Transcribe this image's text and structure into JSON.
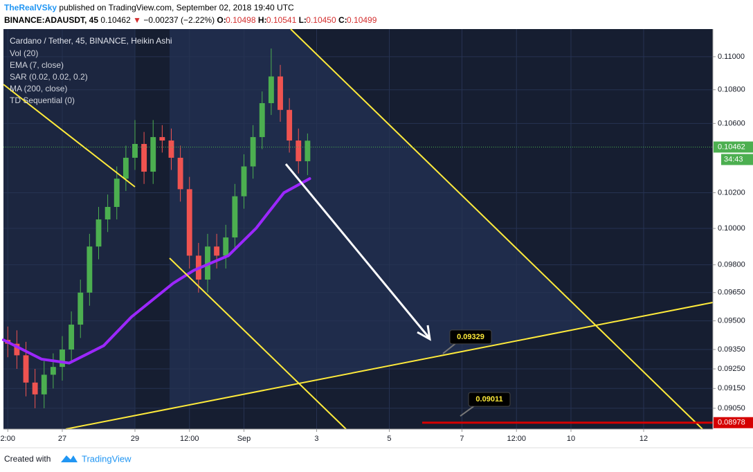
{
  "header": {
    "author": "TheRealVSky",
    "published": "published on TradingView.com, September 02, 2018 19:40 UTC",
    "symbol": "BINANCE:ADAUSDT, 45",
    "last": "0.10462",
    "arrow": "▼",
    "change": "−0.00237 (−2.22%)",
    "ohlc": [
      {
        "key": "O:",
        "value": "0.10498"
      },
      {
        "key": "H:",
        "value": "0.10541"
      },
      {
        "key": "L:",
        "value": "0.10450"
      },
      {
        "key": "C:",
        "value": "0.10499"
      }
    ]
  },
  "chart_data": {
    "type": "candlestick",
    "title": "Cardano / Tether, 45, BINANCE, Heikin Ashi",
    "indicators": [
      "Vol (20)",
      "EMA (7, close)",
      "SAR (0.02, 0.02, 0.2)",
      "MA (200, close)",
      "TD Sequential (0)"
    ],
    "x": [
      25.5,
      25.75,
      26,
      26.25,
      26.5,
      26.75,
      27,
      27.25,
      27.5,
      27.75,
      28,
      28.25,
      28.5,
      28.75,
      29,
      29.25,
      29.5,
      29.75,
      30,
      30.25,
      30.5,
      30.75,
      31,
      31.25,
      31.5,
      31.75,
      32,
      32.25,
      32.5,
      32.75,
      33,
      33.25,
      33.5,
      33.75
    ],
    "open": [
      0.094,
      0.0938,
      0.0932,
      0.0918,
      0.0912,
      0.0922,
      0.0926,
      0.0935,
      0.0948,
      0.0965,
      0.099,
      0.1005,
      0.1012,
      0.1028,
      0.104,
      0.1048,
      0.1032,
      0.1052,
      0.105,
      0.104,
      0.1022,
      0.0985,
      0.0972,
      0.099,
      0.0985,
      0.0995,
      0.1018,
      0.1035,
      0.1052,
      0.1072,
      0.1088,
      0.1068,
      0.105,
      0.1038
    ],
    "high": [
      0.0947,
      0.0945,
      0.0939,
      0.0925,
      0.0929,
      0.0933,
      0.0942,
      0.0955,
      0.0972,
      0.0997,
      0.1012,
      0.1019,
      0.1035,
      0.1047,
      0.1062,
      0.1055,
      0.1062,
      0.1059,
      0.1057,
      0.1047,
      0.1029,
      0.0992,
      0.0997,
      0.0997,
      0.1002,
      0.1025,
      0.1042,
      0.1059,
      0.1079,
      0.1105,
      0.1095,
      0.1075,
      0.1057,
      0.10541
    ],
    "low": [
      0.0931,
      0.0925,
      0.0911,
      0.0905,
      0.0905,
      0.0915,
      0.0919,
      0.0928,
      0.0941,
      0.0958,
      0.0983,
      0.0998,
      0.1005,
      0.1021,
      0.1033,
      0.1025,
      0.1025,
      0.1043,
      0.1033,
      0.1015,
      0.0978,
      0.0965,
      0.0965,
      0.0978,
      0.0978,
      0.0988,
      0.1011,
      0.1028,
      0.1045,
      0.1065,
      0.1061,
      0.1043,
      0.1031,
      0.103
    ],
    "close": [
      0.0938,
      0.0932,
      0.0918,
      0.0912,
      0.0922,
      0.0926,
      0.0935,
      0.0948,
      0.0965,
      0.099,
      0.1005,
      0.1012,
      0.1028,
      0.104,
      0.1048,
      0.1032,
      0.1052,
      0.105,
      0.104,
      0.1022,
      0.0985,
      0.0972,
      0.099,
      0.0985,
      0.0995,
      0.1018,
      0.1035,
      0.1052,
      0.1072,
      0.1088,
      0.1068,
      0.105,
      0.1038,
      0.10499
    ],
    "up_color": "#4caf50",
    "down_color": "#ef5350",
    "ma_line": {
      "color": "#9c27ff",
      "x": [
        25.38,
        26.43,
        27.19,
        28.14,
        28.9,
        30.05,
        30.62,
        31.57,
        32.33,
        33.1,
        33.81
      ],
      "values": [
        0.094,
        0.093,
        0.0928,
        0.0937,
        0.0952,
        0.097,
        0.0977,
        0.0985,
        0.1,
        0.102,
        0.1028
      ]
    },
    "xlim": [
      25.381,
      44.905
    ],
    "xticks": [
      {
        "value": 25.5,
        "label": "2:00"
      },
      27,
      29,
      {
        "value": 30.5,
        "label": "12:00"
      },
      {
        "value": 32,
        "label": "Sep"
      },
      {
        "value": 34,
        "label": "3"
      },
      {
        "value": 36,
        "label": "5"
      },
      {
        "value": 38,
        "label": "7"
      },
      {
        "value": 39.5,
        "label": "12:00"
      },
      {
        "value": 41,
        "label": "10"
      },
      {
        "value": 43,
        "label": "12"
      }
    ],
    "ylim": [
      0.08946,
      0.1117
    ],
    "log": true,
    "grid": true,
    "yticks": [
      {
        "value": 0.11,
        "label": "0.11000"
      },
      {
        "value": 0.108,
        "label": "0.10800"
      },
      {
        "value": 0.106,
        "label": "0.10600"
      },
      {
        "value": 0.102,
        "label": "0.10200"
      },
      {
        "value": 0.1,
        "label": "0.10000"
      },
      {
        "value": 0.098,
        "label": "0.09800"
      },
      {
        "value": 0.0965,
        "label": "0.09650"
      },
      {
        "value": 0.095,
        "label": "0.09500"
      },
      {
        "value": 0.0935,
        "label": "0.09350"
      },
      {
        "value": 0.0925,
        "label": "0.09250"
      },
      {
        "value": 0.0915,
        "label": "0.09150"
      },
      {
        "value": 0.0905,
        "label": "0.09050"
      }
    ],
    "last_price": 0.10462,
    "countdown": "34:43",
    "alert_level": 0.08978,
    "alert_color": "#d50000",
    "targets": [
      0.09329,
      0.09011
    ]
  },
  "footer": {
    "created": "Created with",
    "brand": "TradingView"
  }
}
